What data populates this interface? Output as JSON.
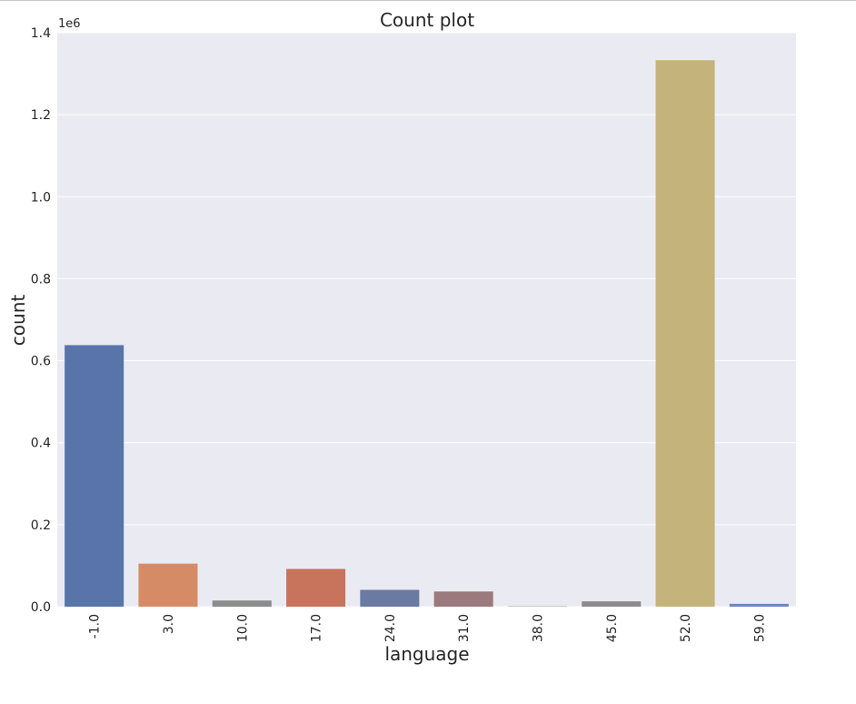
{
  "chart_data": {
    "type": "bar",
    "title": "Count plot",
    "xlabel": "language",
    "ylabel": "count",
    "y_offset_label": "1e6",
    "ylim": [
      0,
      1.4
    ],
    "yticks": [
      "0.0",
      "0.2",
      "0.4",
      "0.6",
      "0.8",
      "1.0",
      "1.2",
      "1.4"
    ],
    "grid": true,
    "categories": [
      "-1.0",
      "3.0",
      "10.0",
      "17.0",
      "24.0",
      "31.0",
      "38.0",
      "45.0",
      "52.0",
      "59.0"
    ],
    "values": [
      0.638,
      0.105,
      0.015,
      0.092,
      0.041,
      0.037,
      0.002,
      0.013,
      1.333,
      0.007
    ],
    "colors": [
      "#5874a9",
      "#d58c66",
      "#8c8c8c",
      "#c8735c",
      "#6a7aa2",
      "#9a7a7c",
      "#c8c8c8",
      "#8f8a8e",
      "#c4b47c",
      "#6d89c4"
    ],
    "background_color": "#eaeaf2",
    "grid_color": "#ffffff"
  }
}
